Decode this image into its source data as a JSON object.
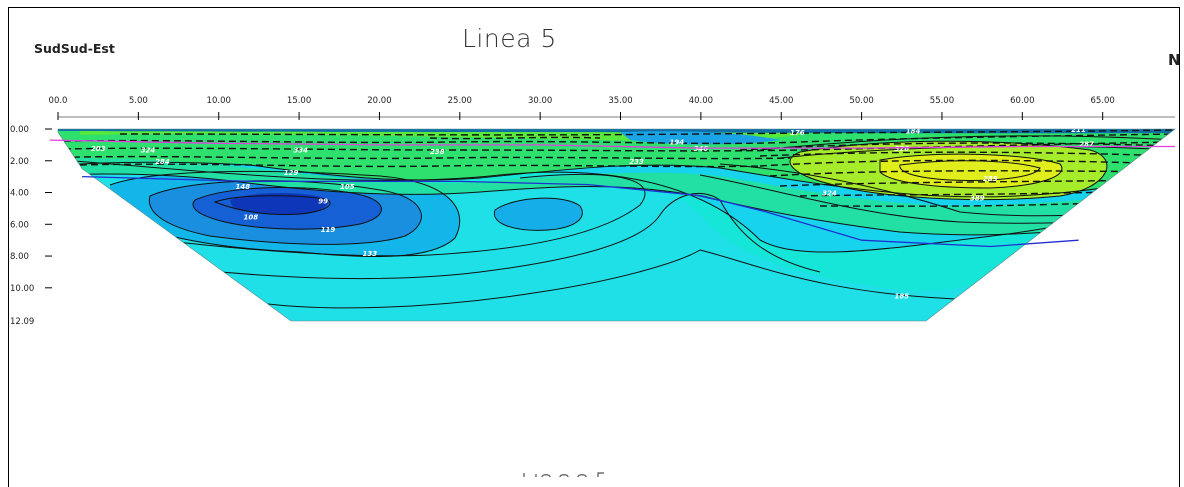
{
  "chart_data": {
    "type": "heatmap",
    "title": "Linea 5",
    "left_end_label": "SudSud-Est",
    "right_end_label": "N",
    "x_ticks": [
      "00.0",
      "5.00",
      "10.00",
      "15.00",
      "20.00",
      "25.00",
      "30.00",
      "35.00",
      "40.00",
      "45.00",
      "50.00",
      "55.00",
      "60.00",
      "65.00"
    ],
    "x_tick_values": [
      0,
      5,
      10,
      15,
      20,
      25,
      30,
      35,
      40,
      45,
      50,
      55,
      60,
      65
    ],
    "xlim": [
      0,
      69.5
    ],
    "y_ticks": [
      "0.00",
      "2.00",
      "4.00",
      "6.00",
      "8.00",
      "10.00",
      "12.09"
    ],
    "y_tick_values": [
      0,
      2,
      4,
      6,
      8,
      10,
      12.09
    ],
    "ylim": [
      0,
      12.09
    ],
    "section_polygon": [
      [
        0,
        0
      ],
      [
        69.5,
        0
      ],
      [
        54,
        12.09
      ],
      [
        14.5,
        12.09
      ],
      [
        1.5,
        2.5
      ],
      [
        0,
        0.2
      ]
    ],
    "contour_labels": [
      {
        "text": "203",
        "x": 2.5,
        "y": 1.2
      },
      {
        "text": "324",
        "x": 5.6,
        "y": 1.3
      },
      {
        "text": "284",
        "x": 6.5,
        "y": 2.0
      },
      {
        "text": "334",
        "x": 15.1,
        "y": 1.3
      },
      {
        "text": "129",
        "x": 14.5,
        "y": 2.7
      },
      {
        "text": "238",
        "x": 23.6,
        "y": 1.4
      },
      {
        "text": "148",
        "x": 11.5,
        "y": 3.6
      },
      {
        "text": "105",
        "x": 18.0,
        "y": 3.6
      },
      {
        "text": "99",
        "x": 16.5,
        "y": 4.5
      },
      {
        "text": "108",
        "x": 12.0,
        "y": 5.5
      },
      {
        "text": "119",
        "x": 16.8,
        "y": 6.3
      },
      {
        "text": "133",
        "x": 19.4,
        "y": 7.8
      },
      {
        "text": "233",
        "x": 36.0,
        "y": 2.0
      },
      {
        "text": "176",
        "x": 46.0,
        "y": 0.2
      },
      {
        "text": "184",
        "x": 53.2,
        "y": 0.1
      },
      {
        "text": "211",
        "x": 63.5,
        "y": 0.0
      },
      {
        "text": "194",
        "x": 38.5,
        "y": 0.8
      },
      {
        "text": "346",
        "x": 40.0,
        "y": 1.2
      },
      {
        "text": "287",
        "x": 64.0,
        "y": 0.9
      },
      {
        "text": "289",
        "x": 58.0,
        "y": 3.1
      },
      {
        "text": "324",
        "x": 48.0,
        "y": 4.0
      },
      {
        "text": "389",
        "x": 57.2,
        "y": 4.3
      },
      {
        "text": "326",
        "x": 52.5,
        "y": 1.2
      },
      {
        "text": "185",
        "x": 52.5,
        "y": 10.5
      }
    ],
    "interpreted_lines": [
      {
        "color": "#e040e0",
        "points": [
          [
            -0.5,
            0.7
          ],
          [
            10,
            0.9
          ],
          [
            20,
            1.0
          ],
          [
            30,
            1.0
          ],
          [
            40,
            1.2
          ],
          [
            50,
            1.2
          ],
          [
            60,
            1.1
          ],
          [
            69.5,
            1.1
          ]
        ]
      },
      {
        "color": "#2030d0",
        "points": [
          [
            1.5,
            3.0
          ],
          [
            12,
            3.3
          ],
          [
            25,
            3.3
          ],
          [
            33,
            3.5
          ],
          [
            40,
            4.2
          ],
          [
            44,
            5.2
          ],
          [
            50,
            7.0
          ],
          [
            58,
            7.4
          ],
          [
            63.5,
            7.0
          ]
        ]
      }
    ]
  }
}
